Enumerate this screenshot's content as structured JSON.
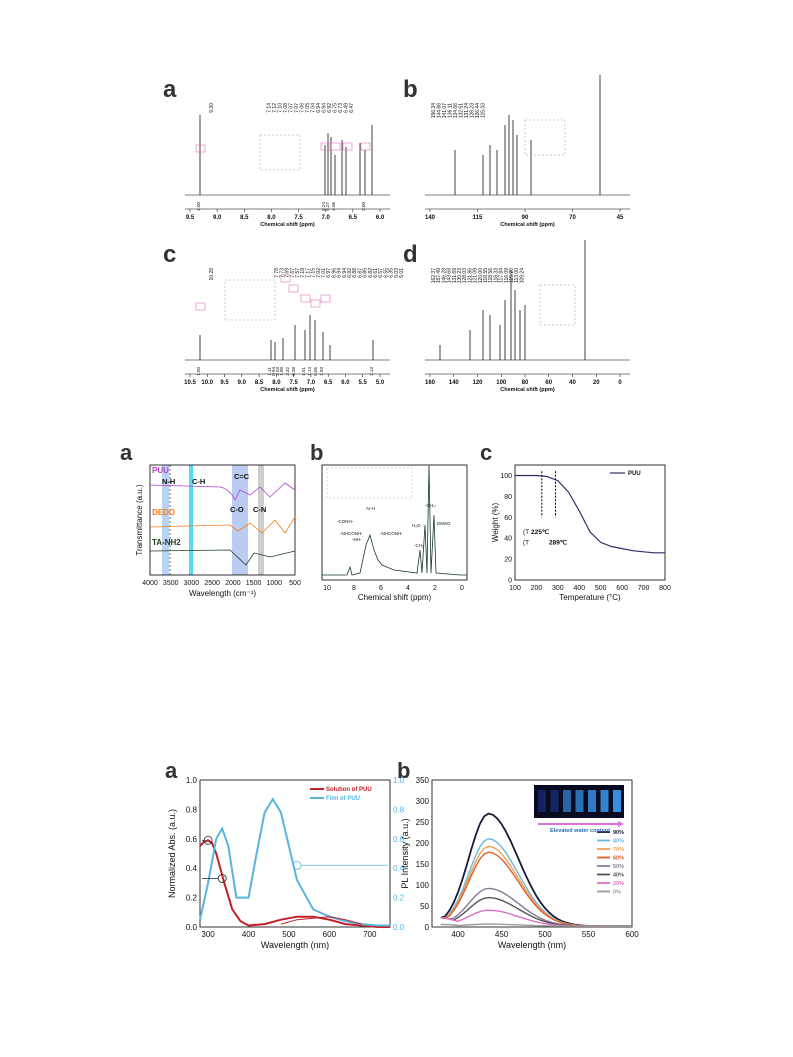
{
  "figure1": {
    "a": {
      "letter": "a",
      "peaks": [
        "9.30",
        "7.14",
        "7.12",
        "7.10",
        "7.08",
        "7.07",
        "7.07",
        "7.06",
        "7.05",
        "7.04",
        "6.94",
        "6.94",
        "6.92",
        "6.75",
        "6.73",
        "6.49",
        "6.47"
      ],
      "ticks": [
        "9.5",
        "9.0",
        "8.5",
        "8.0",
        "7.5",
        "7.0",
        "6.5",
        "6.0"
      ],
      "integrals": [
        "2.00",
        "8.24",
        "6.27",
        "4.06",
        "2.00"
      ],
      "xlabel": "Chemical shift (ppm)"
    },
    "b": {
      "letter": "b",
      "peaks": [
        "156.34",
        "144.86",
        "141.07",
        "136.11",
        "134.66",
        "132.51",
        "131.24",
        "128.23",
        "126.44",
        "115.03"
      ],
      "ticks": [
        "140",
        "115",
        "90",
        "70",
        "45"
      ],
      "xlabel": "Chemical shift (ppm)"
    },
    "c": {
      "letter": "c",
      "peaks": [
        "10.28",
        "7.78",
        "7.73",
        "7.69",
        "7.67",
        "7.57",
        "7.19",
        "7.17",
        "7.15",
        "7.02",
        "7.01",
        "6.97",
        "6.96",
        "6.94",
        "6.94",
        "6.92",
        "6.88",
        "6.87",
        "6.85",
        "6.82",
        "6.61",
        "6.57",
        "6.55",
        "6.35",
        "5.03",
        "5.01"
      ],
      "ticks": [
        "10.5",
        "10.0",
        "9.5",
        "9.0",
        "8.5",
        "8.0",
        "7.5",
        "7.0",
        "6.5",
        "6.0",
        "5.5",
        "5.0"
      ],
      "integrals": [
        "1.00",
        "1.11",
        "0.94",
        "2.03",
        "1.00",
        "2.32",
        "6.38",
        "4.01",
        "1.14",
        "0.05",
        "1.93",
        "2.13"
      ],
      "xlabel": "Chemical shift (ppm)"
    },
    "d": {
      "letter": "d",
      "peaks": [
        "162.37",
        "157.49",
        "146.28",
        "143.68",
        "131.69",
        "130.23",
        "128.03",
        "121.86",
        "121.09",
        "120.00",
        "119.55",
        "118.56",
        "118.33",
        "117.84",
        "116.09",
        "115.20",
        "113.00",
        "109.24"
      ],
      "ticks": [
        "160",
        "140",
        "120",
        "100",
        "80",
        "60",
        "40",
        "20",
        "0"
      ],
      "xlabel": "Chemical shift (ppm)"
    }
  },
  "figure2": {
    "a": {
      "letter": "a",
      "ylabel": "Transmittance (a.u.)",
      "xlabel": "Wavelength (cm⁻¹)",
      "ticks": [
        "4000",
        "3500",
        "3000",
        "2500",
        "2000",
        "1500",
        "1000",
        "500"
      ],
      "labels": {
        "puu": "PUU",
        "dedo": "DEDO",
        "ta": "TA-NH2",
        "nh": "N-H",
        "ch": "C-H",
        "cc": "C=C",
        "co": "C-O",
        "cn": "C-N"
      }
    },
    "b": {
      "letter": "b",
      "xlabel": "Chemical shift (ppm)",
      "ticks": [
        "10",
        "8",
        "6",
        "4",
        "2",
        "0"
      ],
      "labels": {
        "conh": "-CONH-",
        "nhconh": "-NHCONH-",
        "nh": "-NH-",
        "arh": "Ar-H",
        "nhconh2": "-NHCONH-",
        "h2o": "H₂O",
        "ch2a": "-CH₂",
        "ch2b": "-CH₂-",
        "dmso": "DMSO"
      }
    },
    "c": {
      "letter": "c",
      "ylabel": "Weight (%)",
      "xlabel": "Temperature (°C)",
      "legend": "PUU",
      "td": "225℃",
      "t5": "289℃",
      "xticks": [
        "100",
        "200",
        "300",
        "400",
        "500",
        "600",
        "700",
        "800"
      ],
      "yticks": [
        "0",
        "20",
        "40",
        "60",
        "80",
        "100"
      ],
      "chart_data": {
        "type": "line",
        "x": [
          100,
          150,
          200,
          250,
          300,
          350,
          400,
          450,
          500,
          550,
          600,
          650,
          700,
          750,
          800
        ],
        "y": [
          100,
          100,
          100,
          99,
          95,
          84,
          66,
          46,
          36,
          32,
          30,
          28,
          27,
          26,
          26
        ],
        "xlim": [
          100,
          800
        ],
        "ylim": [
          0,
          110
        ],
        "legend": "top-right"
      }
    }
  },
  "figure3": {
    "a": {
      "letter": "a",
      "ylabel": "Normalized Abs. (a.u.)",
      "xlabel": "Wavelength (nm)",
      "legend": [
        "Solution of PUU",
        "Film of PUU"
      ],
      "xticks": [
        "300",
        "400",
        "500",
        "600",
        "700"
      ],
      "yticks": [
        "0.0",
        "0.2",
        "0.4",
        "0.6",
        "0.8",
        "1.0"
      ],
      "colors": {
        "solution": "#c0202a",
        "film": "#5bb4e0"
      },
      "chart_data": {
        "type": "line",
        "xlim": [
          280,
          750
        ],
        "ylim_left": [
          0,
          1.0
        ],
        "ylim_right": [
          0,
          1.0
        ],
        "series": [
          {
            "name": "Solution of PUU",
            "x": [
              280,
              290,
              300,
              310,
              320,
              340,
              360,
              380,
              400,
              440,
              480,
              520,
              560,
              600,
              640,
              680,
              720,
              750
            ],
            "y": [
              0.55,
              0.58,
              0.59,
              0.57,
              0.5,
              0.3,
              0.12,
              0.04,
              0.01,
              0.02,
              0.05,
              0.07,
              0.07,
              0.05,
              0.02,
              0.01,
              0.0,
              0.0
            ]
          },
          {
            "name": "Film of PUU",
            "x": [
              280,
              300,
              320,
              335,
              350,
              370,
              400,
              420,
              440,
              460,
              480,
              500,
              520,
              560,
              600,
              640,
              680,
              720,
              750
            ],
            "y": [
              0.05,
              0.3,
              0.6,
              0.67,
              0.55,
              0.2,
              0.2,
              0.5,
              0.78,
              0.87,
              0.78,
              0.55,
              0.32,
              0.12,
              0.07,
              0.04,
              0.02,
              0.01,
              0.01
            ]
          },
          {
            "name": "",
            "x": [
              480,
              520,
              560,
              600,
              640,
              680
            ],
            "y": [
              0.02,
              0.05,
              0.06,
              0.07,
              0.05,
              0.02
            ]
          }
        ]
      }
    },
    "b": {
      "letter": "b",
      "ylabel": "PL Intensity (a.u.)",
      "xlabel": "Wavelength (nm)",
      "inset_caption": "Elevated water content",
      "xticks": [
        "400",
        "450",
        "500",
        "550",
        "600"
      ],
      "yticks": [
        "0",
        "50",
        "100",
        "150",
        "200",
        "250",
        "300",
        "350"
      ],
      "chart_data": {
        "type": "line",
        "xlim": [
          370,
          600
        ],
        "ylim": [
          0,
          350
        ],
        "series": [
          {
            "name": "90%",
            "color": "#1a1a3a",
            "peak": 268
          },
          {
            "name": "80%",
            "color": "#6ab8e0",
            "peak": 208
          },
          {
            "name": "70%",
            "color": "#f0a050",
            "peak": 190
          },
          {
            "name": "60%",
            "color": "#e06030",
            "peak": 176
          },
          {
            "name": "50%",
            "color": "#8a7a9a",
            "peak": 90
          },
          {
            "name": "40%",
            "color": "#555555",
            "peak": 68
          },
          {
            "name": "20%",
            "color": "#e070c0",
            "peak": 38
          },
          {
            "name": "0%",
            "color": "#999999",
            "peak": 5
          }
        ],
        "peak_x": 435
      }
    }
  }
}
